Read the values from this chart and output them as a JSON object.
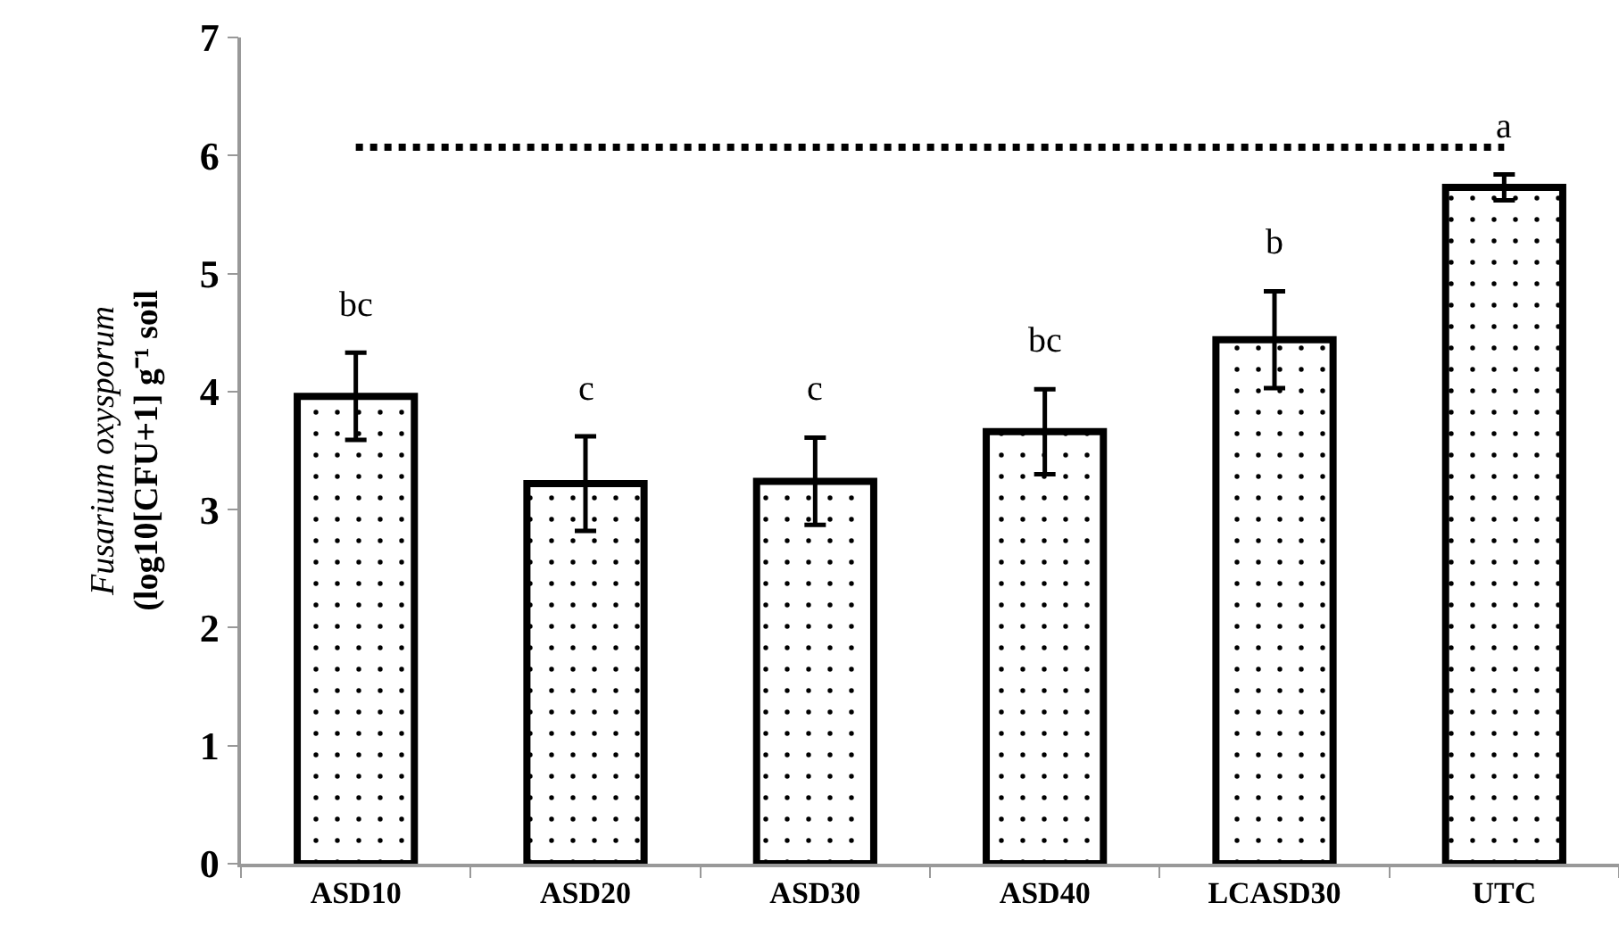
{
  "chart_data": {
    "type": "bar",
    "ylabel": "Fusarium oxysporum\n(log10[CFU+1] g⁻¹ soil",
    "categories": [
      "ASD10",
      "ASD20",
      "ASD30",
      "ASD40",
      "LCASD30",
      "UTC"
    ],
    "values": [
      3.96,
      3.22,
      3.24,
      3.66,
      4.44,
      5.73
    ],
    "errors": [
      0.37,
      0.4,
      0.37,
      0.36,
      0.41,
      0.11
    ],
    "color": "#000000",
    "ylim": [
      0,
      7
    ],
    "yticks": [
      0,
      1,
      2,
      3,
      4,
      5,
      6,
      7
    ],
    "grid": false,
    "legend": false,
    "ref_lines": [
      {
        "axis": "y",
        "value": 6.07,
        "line_style": "dotted",
        "color": "#000000"
      }
    ],
    "annotations": [
      "bc",
      "c",
      "c",
      "bc",
      "b",
      "a"
    ]
  }
}
